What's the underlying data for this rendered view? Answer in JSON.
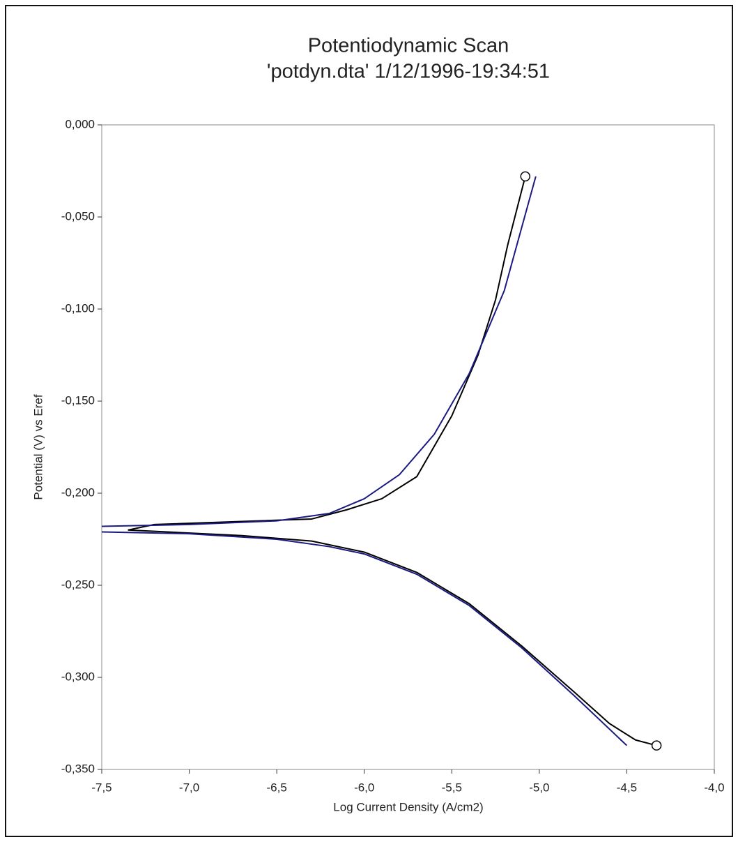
{
  "chart_data": {
    "type": "line",
    "title": "Potentiodynamic Scan",
    "subtitle": "'potdyn.dta' 1/12/1996-19:34:51",
    "x_label": "Log Current Density (A/cm2)",
    "y_label": "Potential (V) vs Eref",
    "xlim": [
      -7.5,
      -4.0
    ],
    "xticks": [
      {
        "value": -7.5,
        "label": "-7,5"
      },
      {
        "value": -7.0,
        "label": "-7,0"
      },
      {
        "value": -6.5,
        "label": "-6,5"
      },
      {
        "value": -6.0,
        "label": "-6,0"
      },
      {
        "value": -5.5,
        "label": "-5,5"
      },
      {
        "value": -5.0,
        "label": "-5,0"
      },
      {
        "value": -4.5,
        "label": "-4,5"
      },
      {
        "value": -4.0,
        "label": "-4,0"
      }
    ],
    "ylim": [
      -0.35,
      0.0
    ],
    "yticks": [
      {
        "value": 0.0,
        "label": "0,000"
      },
      {
        "value": -0.05,
        "label": "-0,050"
      },
      {
        "value": -0.1,
        "label": "-0,100"
      },
      {
        "value": -0.15,
        "label": "-0,150"
      },
      {
        "value": -0.2,
        "label": "-0,200"
      },
      {
        "value": -0.25,
        "label": "-0,250"
      },
      {
        "value": -0.3,
        "label": "-0,300"
      },
      {
        "value": -0.35,
        "label": "-0,350"
      }
    ],
    "grid": false,
    "series": [
      {
        "color": "#000000",
        "end_marker": true,
        "x": [
          -7.35,
          -7.2,
          -6.3,
          -6.1,
          -5.9,
          -5.7,
          -5.5,
          -5.35,
          -5.25,
          -5.18,
          -5.08
        ],
        "values": [
          -0.22,
          -0.217,
          -0.214,
          -0.209,
          -0.203,
          -0.191,
          -0.158,
          -0.125,
          -0.095,
          -0.065,
          -0.028
        ]
      },
      {
        "color": "#000000",
        "end_marker": true,
        "x": [
          -7.35,
          -6.7,
          -6.3,
          -6.0,
          -5.7,
          -5.4,
          -5.1,
          -4.8,
          -4.6,
          -4.45,
          -4.33
        ],
        "values": [
          -0.22,
          -0.223,
          -0.226,
          -0.232,
          -0.243,
          -0.26,
          -0.283,
          -0.308,
          -0.325,
          -0.334,
          -0.337
        ]
      },
      {
        "color": "#1a1a80",
        "end_marker": false,
        "x": [
          -7.5,
          -7.0,
          -6.5,
          -6.2,
          -6.0,
          -5.8,
          -5.6,
          -5.4,
          -5.2,
          -5.02
        ],
        "values": [
          -0.218,
          -0.217,
          -0.215,
          -0.211,
          -0.203,
          -0.19,
          -0.168,
          -0.135,
          -0.09,
          -0.028
        ]
      },
      {
        "color": "#1a1a80",
        "end_marker": false,
        "x": [
          -7.5,
          -7.0,
          -6.5,
          -6.2,
          -6.0,
          -5.7,
          -5.4,
          -5.1,
          -4.8,
          -4.5
        ],
        "values": [
          -0.221,
          -0.222,
          -0.225,
          -0.229,
          -0.233,
          -0.244,
          -0.261,
          -0.284,
          -0.31,
          -0.337
        ]
      }
    ]
  }
}
